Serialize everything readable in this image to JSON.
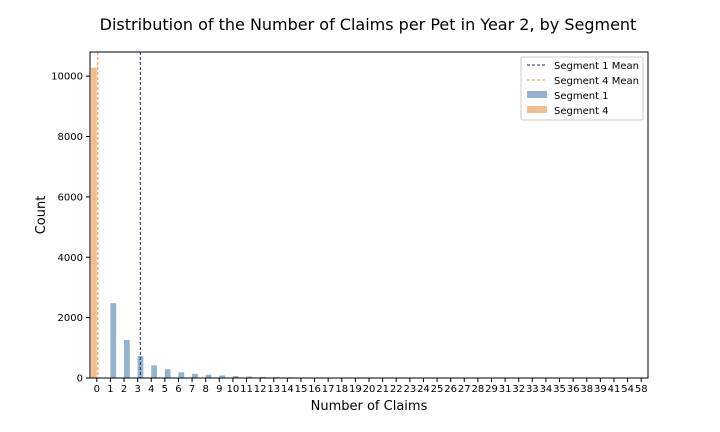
{
  "chart_data": {
    "type": "bar",
    "title": "Distribution of the Number of Claims per Pet in Year 2, by Segment",
    "xlabel": "Number of Claims",
    "ylabel": "Count",
    "categories": [
      "0",
      "1",
      "2",
      "3",
      "4",
      "5",
      "6",
      "7",
      "8",
      "9",
      "10",
      "11",
      "12",
      "13",
      "14",
      "15",
      "16",
      "17",
      "18",
      "19",
      "20",
      "21",
      "22",
      "23",
      "24",
      "25",
      "26",
      "27",
      "28",
      "29",
      "31",
      "32",
      "33",
      "34",
      "35",
      "36",
      "38",
      "39",
      "41",
      "54",
      "58"
    ],
    "ylim": [
      0,
      10800
    ],
    "yticks": [
      0,
      2000,
      4000,
      6000,
      8000,
      10000
    ],
    "grid": false,
    "legend_position": "top-right",
    "series": [
      {
        "name": "Segment 1",
        "color": "#93b4cc",
        "values": [
          0,
          2480,
          1260,
          730,
          420,
          290,
          190,
          140,
          110,
          85,
          65,
          50,
          38,
          30,
          24,
          18,
          14,
          11,
          9,
          7,
          6,
          5,
          4,
          3,
          3,
          2,
          2,
          2,
          1,
          1,
          1,
          1,
          1,
          1,
          1,
          1,
          1,
          1,
          1,
          1,
          1
        ]
      },
      {
        "name": "Segment 4",
        "color": "#f1bf8e",
        "values": [
          10280,
          0,
          0,
          0,
          0,
          0,
          0,
          0,
          0,
          0,
          0,
          0,
          0,
          0,
          0,
          0,
          0,
          0,
          0,
          0,
          0,
          0,
          0,
          0,
          0,
          0,
          0,
          0,
          0,
          0,
          0,
          0,
          0,
          0,
          0,
          0,
          0,
          0,
          0,
          0,
          0
        ]
      }
    ],
    "mean_lines": [
      {
        "name": "Segment 1 Mean",
        "x": 3.2,
        "color": "#1f2a6b"
      },
      {
        "name": "Segment 4 Mean",
        "x": 0.07,
        "color": "#f28e2b"
      }
    ]
  }
}
